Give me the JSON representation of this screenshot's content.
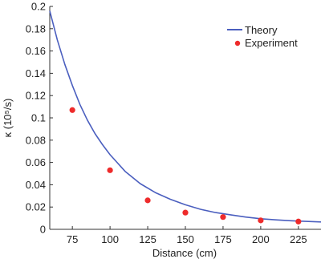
{
  "chart_data": {
    "type": "scatter",
    "title": "",
    "xlabel": "Distance (cm)",
    "ylabel": "κ (10⁵/s)",
    "xlim": [
      60,
      240
    ],
    "ylim": [
      0,
      0.2
    ],
    "x_ticks": [
      75,
      100,
      125,
      150,
      175,
      200,
      225
    ],
    "y_ticks": [
      0,
      0.02,
      0.04,
      0.06,
      0.08,
      0.1,
      0.12,
      0.14,
      0.16,
      0.18,
      0.2
    ],
    "x_tick_labels": [
      "75",
      "100",
      "125",
      "150",
      "175",
      "200",
      "225"
    ],
    "y_tick_labels": [
      "0",
      "0.02",
      "0.04",
      "0.06",
      "0.08",
      "0.1",
      "0.12",
      "0.14",
      "0.16",
      "0.18",
      "0.2"
    ],
    "grid": false,
    "legend_position": "top-right",
    "series": [
      {
        "name": "Theory",
        "kind": "line",
        "color": "#4b5fbf",
        "x": [
          60,
          65,
          70,
          75,
          80,
          85,
          90,
          95,
          100,
          110,
          120,
          130,
          140,
          150,
          160,
          170,
          180,
          190,
          200,
          210,
          220,
          230,
          240
        ],
        "y": [
          0.196,
          0.17,
          0.148,
          0.129,
          0.112,
          0.098,
          0.086,
          0.076,
          0.067,
          0.052,
          0.041,
          0.033,
          0.027,
          0.022,
          0.018,
          0.015,
          0.013,
          0.011,
          0.0095,
          0.0085,
          0.0077,
          0.0071,
          0.0066
        ]
      },
      {
        "name": "Experiment",
        "kind": "scatter",
        "color": "#ee2b2b",
        "x": [
          75,
          100,
          125,
          150,
          175,
          200,
          225
        ],
        "y": [
          0.107,
          0.053,
          0.026,
          0.015,
          0.011,
          0.008,
          0.007
        ]
      }
    ]
  }
}
